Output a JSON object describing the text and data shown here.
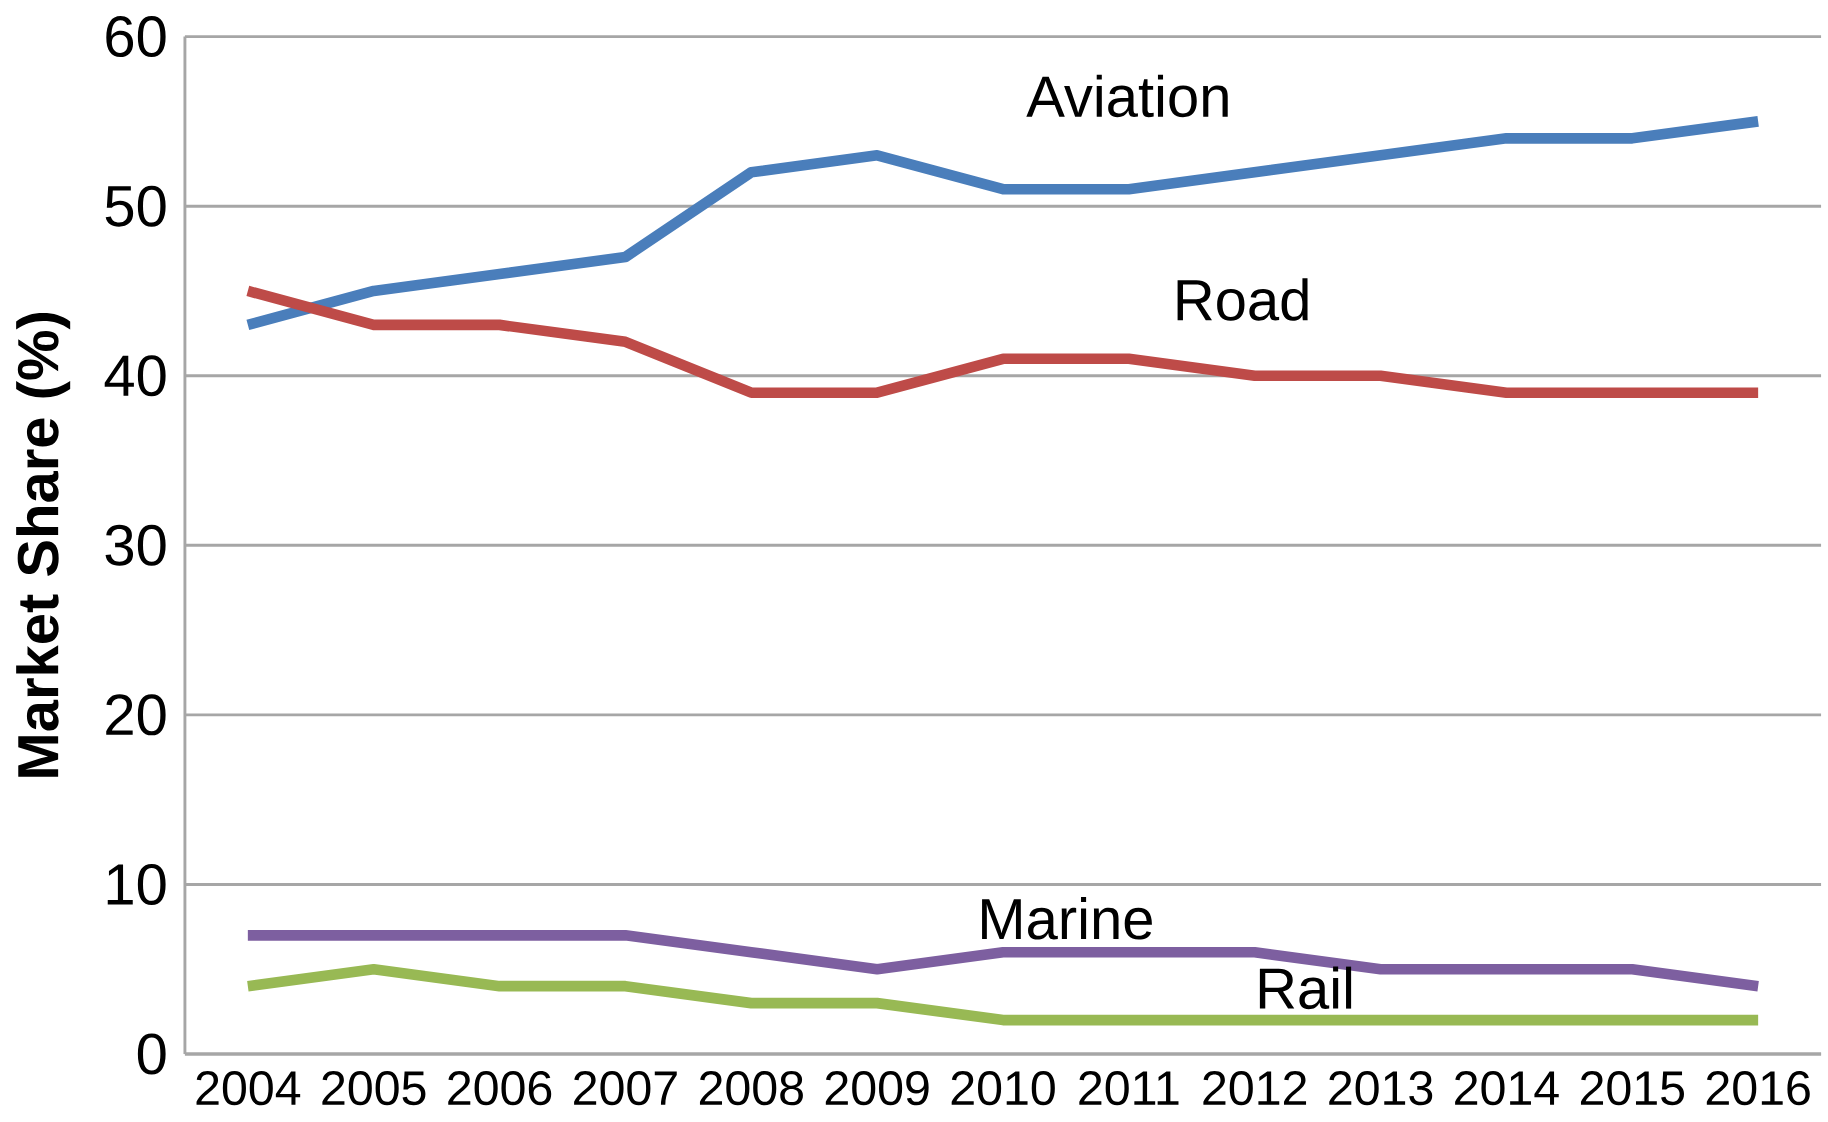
{
  "chart_data": {
    "type": "line",
    "ylabel": "Market Share   (%)",
    "categories": [
      "2004",
      "2005",
      "2006",
      "2007",
      "2008",
      "2009",
      "2010",
      "2011",
      "2012",
      "2013",
      "2014",
      "2015",
      "2016"
    ],
    "series": [
      {
        "name": "Aviation",
        "color": "#4a7ebb",
        "values": [
          43,
          45,
          46,
          47,
          52,
          53,
          51,
          51,
          52,
          53,
          54,
          54,
          55
        ]
      },
      {
        "name": "Road",
        "color": "#be4b48",
        "values": [
          45,
          43,
          43,
          42,
          39,
          39,
          41,
          41,
          40,
          40,
          39,
          39,
          39
        ]
      },
      {
        "name": "Marine",
        "color": "#7d5fa0",
        "values": [
          7,
          7,
          7,
          7,
          6,
          5,
          6,
          6,
          6,
          5,
          5,
          5,
          4
        ]
      },
      {
        "name": "Rail",
        "color": "#98b954",
        "values": [
          4,
          5,
          4,
          4,
          3,
          3,
          2,
          2,
          2,
          2,
          2,
          2,
          2
        ]
      }
    ],
    "ylim": [
      0,
      60
    ],
    "yticks": [
      0,
      10,
      20,
      30,
      40,
      50,
      60
    ],
    "grid": "y"
  }
}
